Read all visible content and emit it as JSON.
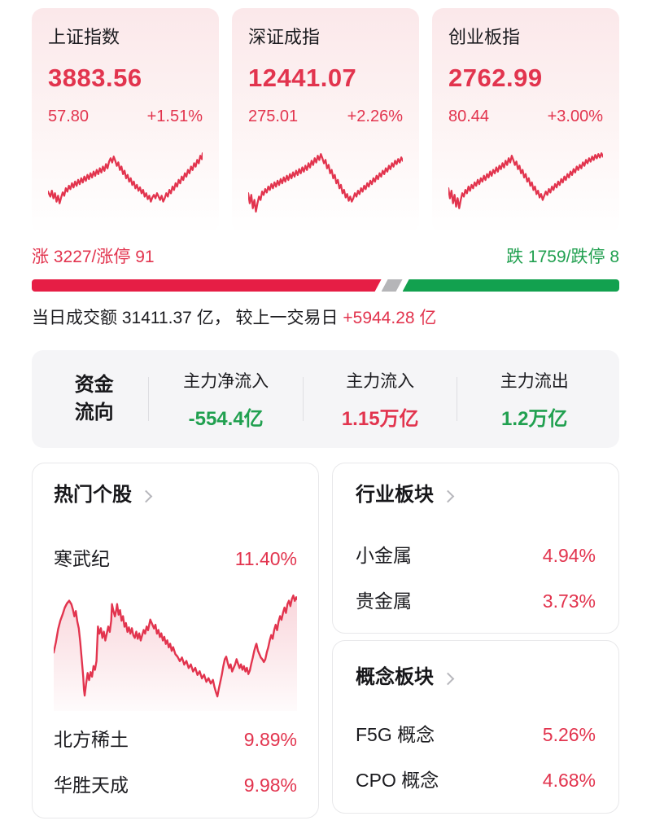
{
  "theme": {
    "red": "#e2344e",
    "bar_red": "#e61e45",
    "green": "#21a050",
    "bar_green": "#12a14f",
    "neutral_gray": "#b5b5b8"
  },
  "indices": [
    {
      "name": "上证指数",
      "value": "3883.56",
      "change": "57.80",
      "change_pct": "+1.51%",
      "sparkline": "0,56 3,62 5,55 7,64 9,58 11,68 13,61 15,70 17,63 19,57 21,61 23,52 25,56 27,49 29,53 31,46 33,51 35,44 37,49 39,42 41,47 43,40 45,45 47,38 49,43 51,36 53,41 55,34 57,39 59,32 61,37 63,30 65,35 67,28 69,33 71,26 73,31 75,23 77,28 79,20 81,16 83,21 85,14 87,19 89,25 91,21 93,30 95,26 97,35 99,31 101,40 103,36 105,44 107,40 109,48 111,44 113,52 115,48 117,55 119,51 121,58 123,54 125,62 127,58 129,65 131,61 133,68 135,63 137,60 139,64 141,58 143,62 145,66 147,61 149,68 151,64 153,58 155,62 157,54 159,58 161,50 163,54 165,46 167,50 169,42 171,46 173,38 175,42 177,34 179,38 181,30 183,34 185,26 187,30 189,22 191,26 193,18 195,22 197,13 199,17 200,10"
    },
    {
      "name": "深证成指",
      "value": "12441.07",
      "change": "275.01",
      "change_pct": "+2.26%",
      "sparkline": "0,58 2,70 4,60 6,76 8,66 10,80 12,70 14,62 16,66 18,56 20,60 22,53 24,57 26,50 28,54 30,47 32,52 34,45 36,50 38,43 40,48 42,41 44,46 46,39 48,44 50,37 52,42 54,35 56,40 58,33 60,38 62,31 64,36 66,29 68,34 70,27 72,32 74,25 76,30 78,22 80,27 82,19 84,24 86,16 88,21 90,13 92,18 94,11 96,16 98,22 100,18 102,28 104,24 106,34 108,30 110,40 112,36 114,46 116,42 118,52 120,48 122,58 124,54 126,63 128,59 130,67 132,62 134,68 136,64 138,58 140,62 142,55 144,59 146,52 148,56 150,49 152,53 154,46 156,50 158,43 160,47 162,40 164,44 166,37 168,41 170,34 172,38 174,31 176,35 178,28 180,32 182,25 184,29 186,22 188,26 190,19 192,23 194,17 196,21 198,15 200,19"
    },
    {
      "name": "创业板指",
      "value": "2762.99",
      "change": "80.44",
      "change_pct": "+3.00%",
      "sparkline": "0,52 2,64 4,55 6,70 8,60 10,74 12,64 14,76 16,66 18,58 20,62 22,54 24,58 26,50 28,55 30,48 32,52 34,45 36,49 38,42 40,47 42,40 44,44 46,37 48,42 50,35 52,39 54,32 56,37 58,30 60,34 62,27 64,32 66,25 68,29 70,22 72,27 74,19 76,24 78,16 80,21 82,13 84,18 86,24 88,20 90,29 92,25 94,34 96,30 98,39 100,35 102,44 104,40 106,49 108,45 110,54 112,50 114,59 116,55 118,63 120,59 122,66 124,61 126,56 128,60 130,53 132,57 134,50 136,54 138,47 140,51 142,44 144,48 146,41 148,45 150,38 152,42 154,35 156,39 158,32 160,36 162,29 164,33 166,26 168,30 170,24 172,28 174,21 176,25 178,18 180,22 182,16 184,20 186,14 188,18 190,12 192,16 194,11 196,15 198,10 200,14"
    }
  ],
  "breadth": {
    "up_label": "涨 3227/涨停 91",
    "down_label": "跌 1759/跌停 8",
    "bar": {
      "up_width": "width:59.5%",
      "flat_width": "width:3.6%"
    }
  },
  "turnover": {
    "prefix": "当日成交额 31411.37 亿， 较上一交易日 ",
    "highlight": "+5944.28 亿"
  },
  "fund_flow": {
    "title_line1": "资金",
    "title_line2": "流向",
    "items": [
      {
        "label": "主力净流入",
        "value": "-554.4亿",
        "color_class": "green"
      },
      {
        "label": "主力流入",
        "value": "1.15万亿",
        "color_class": "red"
      },
      {
        "label": "主力流出",
        "value": "1.2万亿",
        "color_class": "green"
      }
    ]
  },
  "hot_stocks": {
    "title": "热门个股",
    "featured": {
      "name": "寒武纪",
      "pct": "11.40%"
    },
    "chart_line_points": "0,72 3,60 6,45 9,35 12,28 15,20 18,15 21,12 24,16 26,22 28,30 30,24 32,36 34,44 36,60 38,80 40,100 41,115 42,122 44,108 46,96 48,104 50,95 52,100 54,88 56,92 58,82 60,42 62,50 64,44 66,55 68,48 70,58 72,50 74,42 76,48 78,35 79,16 81,24 83,30 85,22 86,16 88,28 90,23 92,35 94,30 96,42 98,38 100,48 102,43 104,50 106,44 108,52 110,55 112,48 114,56 116,50 118,58 120,52 122,46 124,50 126,42 128,46 131,34 134,40 136,44 138,40 140,50 142,46 144,54 146,50 148,58 150,54 152,62 154,58 156,66 158,62 160,70 162,66 165,74 168,77 171,82 174,78 177,86 180,82 183,90 186,86 189,94 192,90 195,98 198,94 201,102 204,98 207,106 210,102 213,108 216,104 218,112 220,118 222,123 224,114 226,106 228,98 230,88 232,80 234,77 236,84 238,90 240,86 242,94 244,90 246,86 248,80 250,85 252,90 254,86 256,92 258,88 260,94 262,90 264,97 266,93 268,85 270,78 272,70 274,64 275,62 277,70 279,74 281,78 283,80 285,83 287,80 289,72 291,66 293,58 295,52 297,56 299,46 301,40 303,46 305,36 307,30 309,34 311,26 313,20 315,26 317,16 319,12 321,18 323,10 325,6 327,12 329,8 330,10",
    "others": [
      {
        "name": "北方稀土",
        "pct": "9.89%"
      },
      {
        "name": "华胜天成",
        "pct": "9.98%"
      }
    ]
  },
  "industry_sectors": {
    "title": "行业板块",
    "items": [
      {
        "name": "小金属",
        "pct": "4.94%"
      },
      {
        "name": "贵金属",
        "pct": "3.73%"
      }
    ]
  },
  "concept_sectors": {
    "title": "概念板块",
    "items": [
      {
        "name": "F5G 概念",
        "pct": "5.26%"
      },
      {
        "name": "CPO 概念",
        "pct": "4.68%"
      }
    ]
  }
}
